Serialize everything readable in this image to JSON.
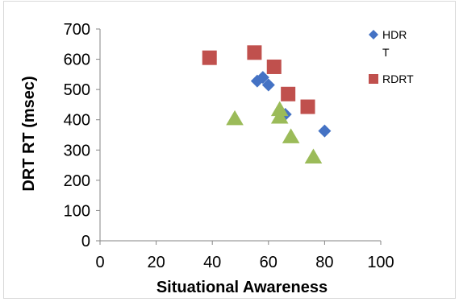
{
  "chart_data": {
    "type": "scatter",
    "title": "",
    "xlabel": "Situational Awareness",
    "ylabel": "DRT RT (msec)",
    "xlim": [
      0,
      100
    ],
    "ylim": [
      0,
      700
    ],
    "xticks": [
      "0",
      "20",
      "40",
      "60",
      "80",
      "100"
    ],
    "yticks": [
      "0",
      "100",
      "200",
      "300",
      "400",
      "500",
      "600",
      "700"
    ],
    "grid": false,
    "legend_position": "right",
    "series": [
      {
        "name": "HDR\nT",
        "marker": "diamond",
        "color": "#4472C4",
        "points": [
          {
            "x": 56,
            "y": 528
          },
          {
            "x": 58,
            "y": 540
          },
          {
            "x": 60,
            "y": 515
          },
          {
            "x": 66,
            "y": 418
          },
          {
            "x": 80,
            "y": 363
          }
        ]
      },
      {
        "name": "RDRT",
        "marker": "square",
        "color": "#C0504D",
        "points": [
          {
            "x": 39,
            "y": 605
          },
          {
            "x": 55,
            "y": 622
          },
          {
            "x": 62,
            "y": 575
          },
          {
            "x": 67,
            "y": 485
          },
          {
            "x": 74,
            "y": 443
          }
        ]
      },
      {
        "name": "",
        "marker": "triangle",
        "color": "#9BBB59",
        "points": [
          {
            "x": 48,
            "y": 405
          },
          {
            "x": 64,
            "y": 435
          },
          {
            "x": 64,
            "y": 410
          },
          {
            "x": 68,
            "y": 345
          },
          {
            "x": 76,
            "y": 278
          }
        ]
      }
    ]
  }
}
